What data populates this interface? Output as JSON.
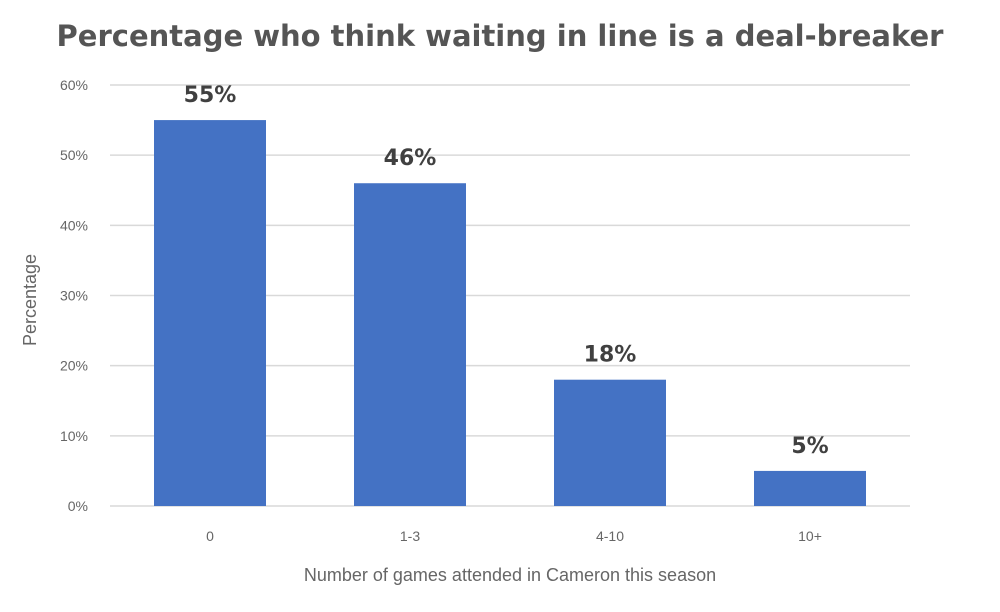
{
  "chart_data": {
    "type": "bar",
    "title": "Percentage who think waiting in line is a deal-breaker",
    "xlabel": "Number of games attended in Cameron this season",
    "ylabel": "Percentage",
    "categories": [
      "0",
      "1-3",
      "4-10",
      "10+"
    ],
    "values": [
      55,
      46,
      18,
      5
    ],
    "data_labels": [
      "55%",
      "46%",
      "18%",
      "5%"
    ],
    "ylim": [
      0,
      60
    ],
    "yticks": [
      0,
      10,
      20,
      30,
      40,
      50,
      60
    ],
    "ytick_labels": [
      "0%",
      "10%",
      "20%",
      "30%",
      "40%",
      "50%",
      "60%"
    ],
    "grid": true,
    "legend": "none",
    "bar_color": "#4472c4"
  }
}
